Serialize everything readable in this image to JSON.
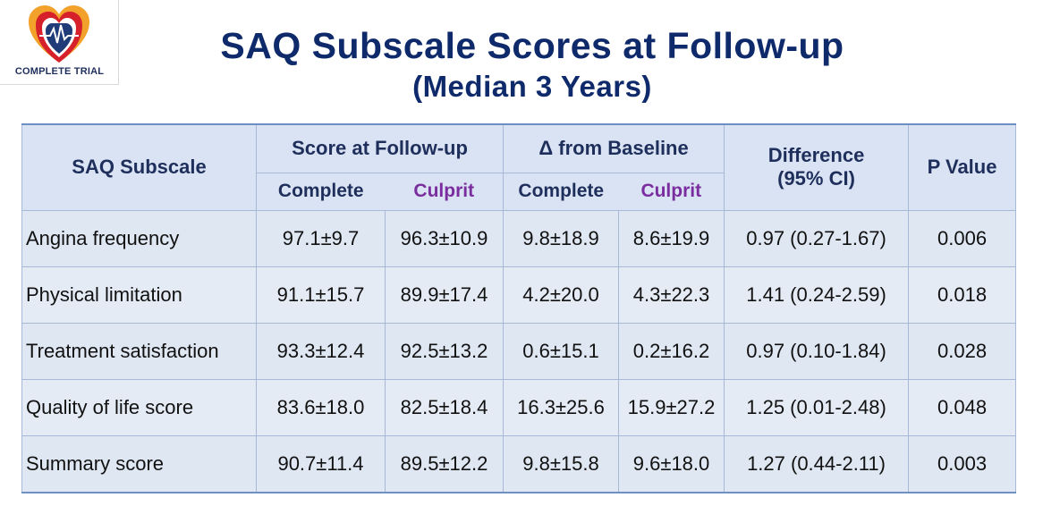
{
  "logo": {
    "text": "COMPLETE TRIAL"
  },
  "title": {
    "line1": "SAQ Subscale Scores at Follow-up",
    "line2": "(Median 3 Years)"
  },
  "table": {
    "headers": {
      "subscale": "SAQ Subscale",
      "score_group": "Score at Follow-up",
      "delta_group": "Δ from Baseline",
      "difference_line1": "Difference",
      "difference_line2": "(95% CI)",
      "p_value": "P Value",
      "complete": "Complete",
      "culprit": "Culprit"
    },
    "rows": [
      {
        "label": "Angina frequency",
        "score_complete": "97.1±9.7",
        "score_culprit": "96.3±10.9",
        "delta_complete": "9.8±18.9",
        "delta_culprit": "8.6±19.9",
        "difference": "0.97 (0.27-1.67)",
        "p": "0.006"
      },
      {
        "label": "Physical limitation",
        "score_complete": "91.1±15.7",
        "score_culprit": "89.9±17.4",
        "delta_complete": "4.2±20.0",
        "delta_culprit": "4.3±22.3",
        "difference": "1.41 (0.24-2.59)",
        "p": "0.018"
      },
      {
        "label": "Treatment satisfaction",
        "score_complete": "93.3±12.4",
        "score_culprit": "92.5±13.2",
        "delta_complete": "0.6±15.1",
        "delta_culprit": "0.2±16.2",
        "difference": "0.97 (0.10-1.84)",
        "p": "0.028"
      },
      {
        "label": "Quality of life score",
        "score_complete": "83.6±18.0",
        "score_culprit": "82.5±18.4",
        "delta_complete": "16.3±25.6",
        "delta_culprit": "15.9±27.2",
        "difference": "1.25 (0.01-2.48)",
        "p": "0.048"
      },
      {
        "label": "Summary score",
        "score_complete": "90.7±11.4",
        "score_culprit": "89.5±12.2",
        "delta_complete": "9.8±15.8",
        "delta_culprit": "9.6±18.0",
        "difference": "1.27 (0.44-2.11)",
        "p": "0.003"
      }
    ]
  },
  "colors": {
    "title": "#0f2a6b",
    "header_bg": "#dae3f3",
    "culprit_text": "#7a2d9e"
  }
}
